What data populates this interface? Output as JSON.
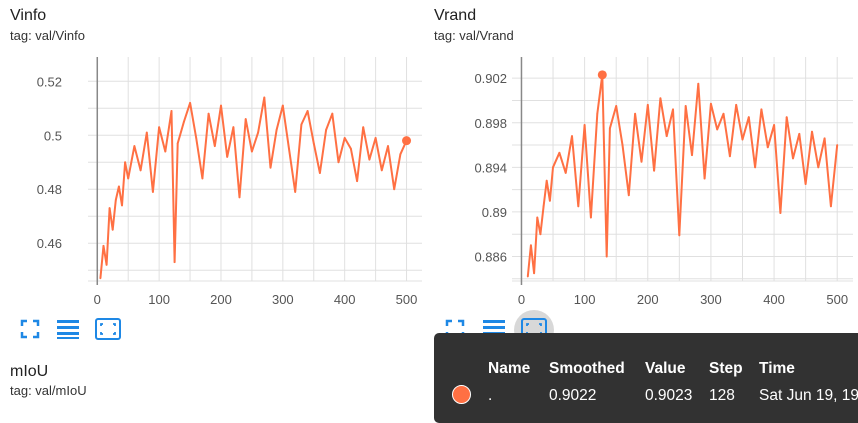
{
  "cards": [
    {
      "title": "Vinfo",
      "tag": "tag: val/Vinfo",
      "y_ticks": [
        "0.46",
        "0.48",
        "0.5",
        "0.52"
      ],
      "x_ticks": [
        "0",
        "100",
        "200",
        "300",
        "400",
        "500"
      ]
    },
    {
      "title": "Vrand",
      "tag": "tag: val/Vrand",
      "y_ticks": [
        "0.886",
        "0.89",
        "0.894",
        "0.898",
        "0.902"
      ],
      "x_ticks": [
        "0",
        "100",
        "200",
        "300",
        "400",
        "500"
      ]
    },
    {
      "title": "mIoU",
      "tag": "tag: val/mIoU"
    }
  ],
  "icons": [
    "fullscreen-icon",
    "list-icon",
    "fit-domain-icon"
  ],
  "tooltip": {
    "headers": [
      "Name",
      "Smoothed",
      "Value",
      "Step",
      "Time"
    ],
    "row": {
      "name": ".",
      "smoothed": "0.9022",
      "value": "0.9023",
      "step": "128",
      "time": "Sat Jun 19, 19"
    }
  },
  "colors": {
    "series": "#ff7043",
    "icon": "#1e88e5"
  },
  "chart_data": [
    {
      "type": "line",
      "title": "Vinfo",
      "xlim": [
        -15,
        525
      ],
      "ylim": [
        0.446,
        0.529
      ],
      "x_ticks": [
        0,
        100,
        200,
        300,
        400,
        500
      ],
      "y_ticks": [
        0.46,
        0.48,
        0.5,
        0.52
      ],
      "grid": true,
      "series": [
        {
          "color": "#ff7043",
          "x": [
            5,
            10,
            15,
            20,
            25,
            30,
            35,
            40,
            45,
            50,
            60,
            70,
            80,
            90,
            100,
            110,
            120,
            125,
            130,
            140,
            150,
            160,
            170,
            180,
            190,
            200,
            210,
            220,
            230,
            240,
            250,
            260,
            270,
            280,
            290,
            300,
            310,
            320,
            330,
            340,
            350,
            360,
            370,
            380,
            390,
            400,
            410,
            420,
            430,
            440,
            450,
            460,
            470,
            480,
            490,
            500
          ],
          "y": [
            0.447,
            0.459,
            0.452,
            0.473,
            0.465,
            0.476,
            0.481,
            0.474,
            0.49,
            0.484,
            0.496,
            0.487,
            0.501,
            0.479,
            0.503,
            0.494,
            0.509,
            0.453,
            0.497,
            0.505,
            0.512,
            0.499,
            0.484,
            0.508,
            0.496,
            0.511,
            0.492,
            0.503,
            0.477,
            0.506,
            0.494,
            0.501,
            0.514,
            0.488,
            0.502,
            0.511,
            0.495,
            0.479,
            0.504,
            0.509,
            0.497,
            0.486,
            0.502,
            0.508,
            0.49,
            0.499,
            0.495,
            0.483,
            0.503,
            0.491,
            0.499,
            0.487,
            0.496,
            0.48,
            0.493,
            0.498
          ]
        }
      ]
    },
    {
      "type": "line",
      "title": "Vrand",
      "xlim": [
        -15,
        525
      ],
      "ylim": [
        0.8838,
        0.9039
      ],
      "x_ticks": [
        0,
        100,
        200,
        300,
        400,
        500
      ],
      "y_ticks": [
        0.886,
        0.89,
        0.894,
        0.898,
        0.902
      ],
      "grid": true,
      "series": [
        {
          "color": "#ff7043",
          "x": [
            10,
            15,
            20,
            25,
            30,
            35,
            40,
            45,
            50,
            60,
            70,
            80,
            90,
            100,
            110,
            120,
            128,
            135,
            140,
            150,
            160,
            170,
            180,
            190,
            200,
            210,
            220,
            230,
            240,
            250,
            260,
            270,
            280,
            290,
            300,
            310,
            320,
            330,
            340,
            350,
            360,
            370,
            380,
            390,
            400,
            410,
            420,
            430,
            440,
            450,
            460,
            470,
            480,
            490,
            500
          ],
          "y": [
            0.8842,
            0.887,
            0.8845,
            0.8895,
            0.888,
            0.8905,
            0.8928,
            0.891,
            0.894,
            0.8953,
            0.8935,
            0.8968,
            0.8905,
            0.8978,
            0.8895,
            0.8988,
            0.9023,
            0.886,
            0.8975,
            0.8995,
            0.896,
            0.8915,
            0.8988,
            0.8945,
            0.8996,
            0.8937,
            0.9002,
            0.8968,
            0.8992,
            0.8879,
            0.8995,
            0.8951,
            0.9015,
            0.893,
            0.8997,
            0.8974,
            0.8988,
            0.895,
            0.8996,
            0.8965,
            0.8985,
            0.894,
            0.8992,
            0.8958,
            0.8978,
            0.8899,
            0.8985,
            0.8948,
            0.897,
            0.8925,
            0.8972,
            0.894,
            0.8966,
            0.8905,
            0.896
          ]
        }
      ]
    }
  ]
}
